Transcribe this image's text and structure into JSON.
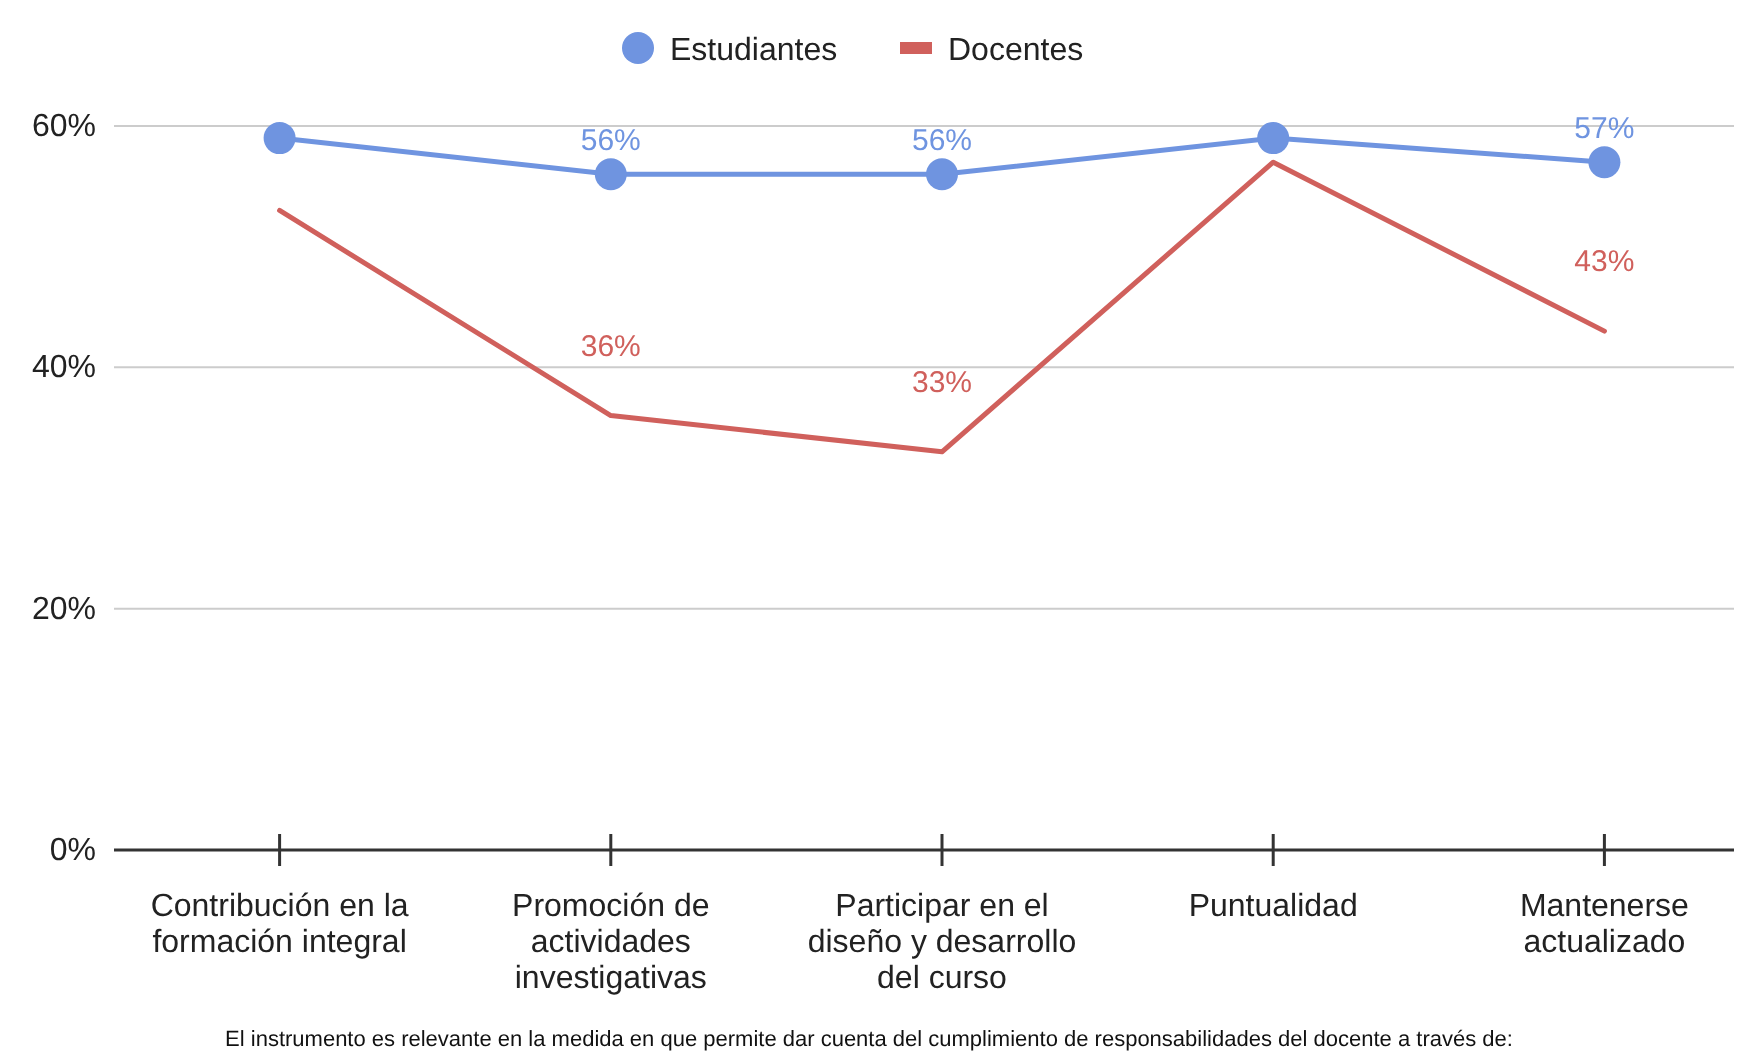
{
  "chart_data": {
    "type": "line",
    "xlabel": "El instrumento es relevante en la medida en que permite dar cuenta del cumplimiento de responsabilidades del docente a través de:",
    "categories": [
      "Contribución en la formación integral",
      "Promoción de actividades investigativas",
      "Participar en el diseño y desarrollo del curso",
      "Puntualidad",
      "Mantenerse actualizado"
    ],
    "series": [
      {
        "name": "Estudiantes",
        "color": "#6f94e0",
        "marker": "circle",
        "values": [
          59,
          56,
          56,
          59,
          57
        ],
        "value_labels": [
          null,
          "56%",
          "56%",
          null,
          "57%"
        ]
      },
      {
        "name": "Docentes",
        "color": "#d0605c",
        "marker": "none",
        "values": [
          53,
          36,
          33,
          57,
          43
        ],
        "value_labels": [
          null,
          "36%",
          "33%",
          null,
          "43%"
        ]
      }
    ],
    "ylim": [
      0,
      60
    ],
    "yticks": [
      {
        "value": 0,
        "label": "0%"
      },
      {
        "value": 20,
        "label": "20%"
      },
      {
        "value": 40,
        "label": "40%"
      },
      {
        "value": 60,
        "label": "60%"
      }
    ],
    "grid": "y",
    "legend": "top",
    "line_style": "solid"
  }
}
